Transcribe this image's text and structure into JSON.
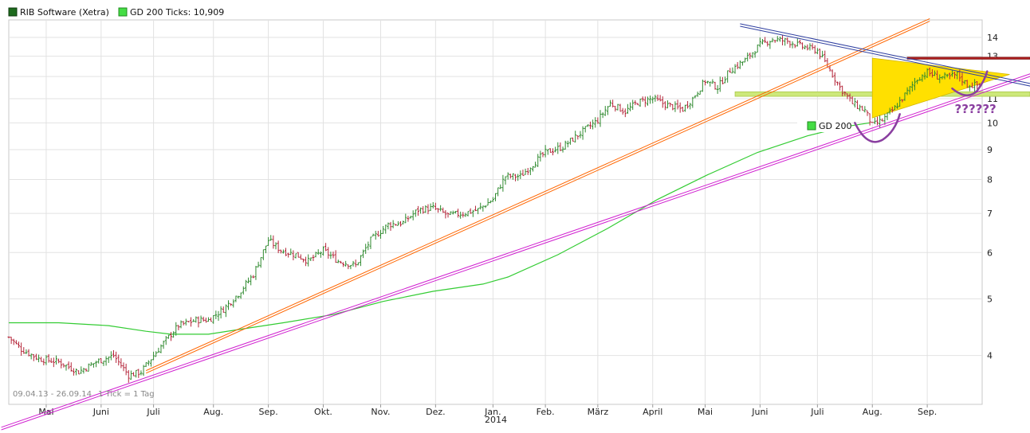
{
  "chart_data": {
    "type": "line",
    "title": "RIB Software (Xetra)",
    "legend": [
      {
        "label": "RIB Software (Xetra)",
        "color": "#1e6b1e"
      },
      {
        "label": "GD 200 Ticks: 10,909",
        "color": "#33cc33"
      }
    ],
    "inline_legend": {
      "label": "GD 200",
      "color": "#33cc33"
    },
    "date_range": "09.04.13 - 26.09.14",
    "tick_note": "1 Tick = 1 Tag",
    "year_label": "2014",
    "scale": "log",
    "ylim": [
      3.3,
      15
    ],
    "yticks": [
      4,
      5,
      6,
      7,
      8,
      9,
      10,
      11,
      12,
      13,
      14
    ],
    "x_months": [
      "Mai",
      "Juni",
      "Juli",
      "Aug.",
      "Sep.",
      "Okt.",
      "Nov.",
      "Dez.",
      "Jan.",
      "Feb.",
      "März",
      "April",
      "Mai",
      "Juni",
      "Juli",
      "Aug.",
      "Sep."
    ],
    "x_month_index": [
      15,
      37,
      58,
      82,
      104,
      126,
      149,
      171,
      194,
      215,
      236,
      258,
      279,
      301,
      324,
      346,
      368
    ],
    "x_range": [
      0,
      390
    ],
    "series": [
      {
        "name": "RIB Software (Xetra)",
        "color_up": "#2f8a2f",
        "color_down": "#b5263a",
        "anchors": [
          [
            0,
            4.3
          ],
          [
            5,
            4.1
          ],
          [
            12,
            3.95
          ],
          [
            20,
            3.9
          ],
          [
            28,
            3.75
          ],
          [
            35,
            3.9
          ],
          [
            42,
            4.0
          ],
          [
            48,
            3.7
          ],
          [
            53,
            3.75
          ],
          [
            58,
            4.0
          ],
          [
            62,
            4.2
          ],
          [
            68,
            4.5
          ],
          [
            75,
            4.6
          ],
          [
            80,
            4.6
          ],
          [
            86,
            4.8
          ],
          [
            92,
            5.1
          ],
          [
            98,
            5.5
          ],
          [
            104,
            6.3
          ],
          [
            109,
            6.05
          ],
          [
            115,
            5.95
          ],
          [
            120,
            5.8
          ],
          [
            126,
            6.05
          ],
          [
            132,
            5.8
          ],
          [
            139,
            5.7
          ],
          [
            145,
            6.3
          ],
          [
            152,
            6.7
          ],
          [
            158,
            6.75
          ],
          [
            164,
            7.1
          ],
          [
            170,
            7.15
          ],
          [
            176,
            6.95
          ],
          [
            182,
            7.0
          ],
          [
            188,
            7.1
          ],
          [
            194,
            7.4
          ],
          [
            199,
            8.1
          ],
          [
            205,
            8.1
          ],
          [
            210,
            8.5
          ],
          [
            215,
            8.9
          ],
          [
            222,
            9.1
          ],
          [
            229,
            9.6
          ],
          [
            236,
            10.1
          ],
          [
            241,
            10.8
          ],
          [
            247,
            10.45
          ],
          [
            252,
            10.85
          ],
          [
            258,
            11.0
          ],
          [
            263,
            10.75
          ],
          [
            270,
            10.55
          ],
          [
            274,
            11.0
          ],
          [
            279,
            11.8
          ],
          [
            284,
            11.5
          ],
          [
            289,
            12.3
          ],
          [
            295,
            12.8
          ],
          [
            301,
            13.6
          ],
          [
            306,
            13.9
          ],
          [
            312,
            13.8
          ],
          [
            318,
            13.5
          ],
          [
            324,
            13.3
          ],
          [
            328,
            12.5
          ],
          [
            333,
            11.5
          ],
          [
            338,
            10.8
          ],
          [
            343,
            10.5
          ],
          [
            346,
            9.9
          ],
          [
            350,
            10.1
          ],
          [
            355,
            10.6
          ],
          [
            360,
            11.3
          ],
          [
            364,
            11.9
          ],
          [
            368,
            12.2
          ],
          [
            372,
            12.0
          ],
          [
            376,
            11.95
          ],
          [
            380,
            12.1
          ],
          [
            384,
            11.6
          ],
          [
            389,
            11.6
          ]
        ]
      },
      {
        "name": "GD 200",
        "color": "#33cc33",
        "points": [
          [
            0,
            4.55
          ],
          [
            20,
            4.55
          ],
          [
            40,
            4.5
          ],
          [
            55,
            4.4
          ],
          [
            65,
            4.35
          ],
          [
            80,
            4.35
          ],
          [
            95,
            4.45
          ],
          [
            110,
            4.55
          ],
          [
            130,
            4.7
          ],
          [
            150,
            4.95
          ],
          [
            170,
            5.15
          ],
          [
            190,
            5.3
          ],
          [
            200,
            5.45
          ],
          [
            220,
            5.95
          ],
          [
            240,
            6.6
          ],
          [
            260,
            7.4
          ],
          [
            280,
            8.15
          ],
          [
            300,
            8.9
          ],
          [
            320,
            9.5
          ],
          [
            335,
            9.85
          ],
          [
            345,
            10.0
          ]
        ]
      }
    ],
    "annotations": [
      {
        "type": "trendline",
        "color": "#ff6600",
        "points": [
          [
            55,
            3.75
          ],
          [
            369,
            15.0
          ]
        ]
      },
      {
        "type": "trendline",
        "color": "#d020d0",
        "points": [
          [
            -3,
            3.0
          ],
          [
            410,
            12.1
          ]
        ]
      },
      {
        "type": "trendline",
        "color": "#2e3ea0",
        "points": [
          [
            293,
            14.7
          ],
          [
            410,
            11.6
          ]
        ]
      },
      {
        "type": "hband",
        "color": "#cde87a",
        "from_x": 291,
        "y": [
          11.1,
          11.3
        ]
      },
      {
        "type": "hband",
        "color": "#b02020",
        "from_x": 360,
        "y": [
          12.85,
          12.95
        ]
      },
      {
        "type": "triangle",
        "color": "#ffe000",
        "points": [
          [
            346,
            12.9
          ],
          [
            346,
            10.2
          ],
          [
            401,
            12.1
          ]
        ]
      },
      {
        "type": "text",
        "text": "??????",
        "x": 379,
        "y": 10.4
      }
    ]
  }
}
